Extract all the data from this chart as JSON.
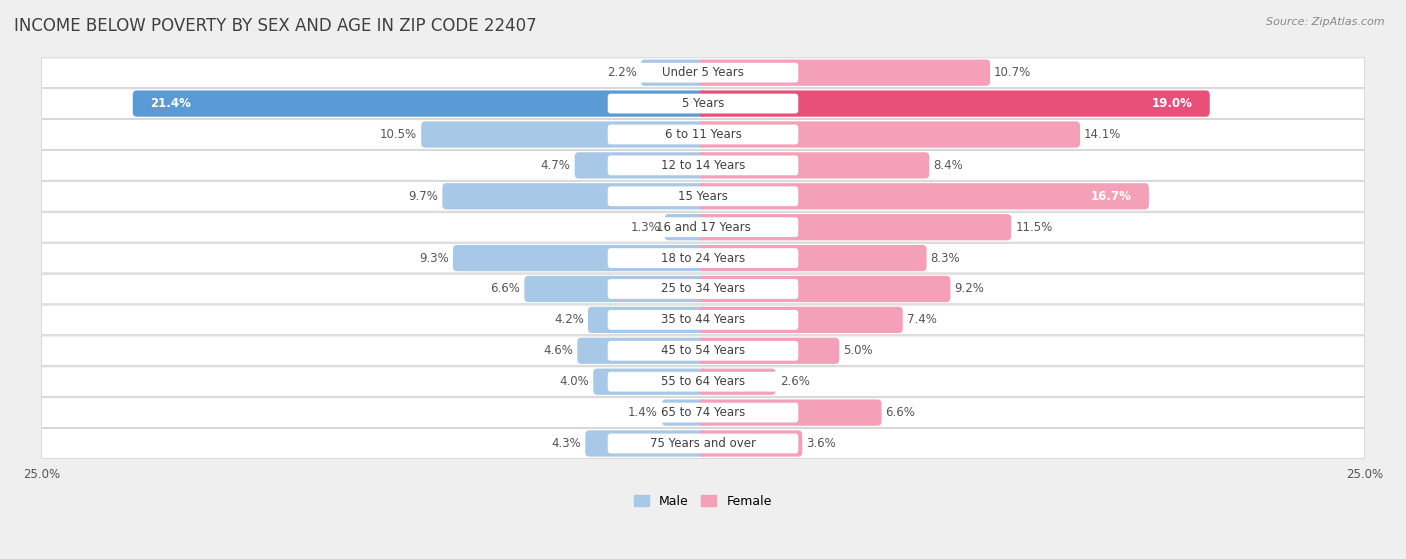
{
  "title": "INCOME BELOW POVERTY BY SEX AND AGE IN ZIP CODE 22407",
  "source": "Source: ZipAtlas.com",
  "categories": [
    "Under 5 Years",
    "5 Years",
    "6 to 11 Years",
    "12 to 14 Years",
    "15 Years",
    "16 and 17 Years",
    "18 to 24 Years",
    "25 to 34 Years",
    "35 to 44 Years",
    "45 to 54 Years",
    "55 to 64 Years",
    "65 to 74 Years",
    "75 Years and over"
  ],
  "male_values": [
    2.2,
    21.4,
    10.5,
    4.7,
    9.7,
    1.3,
    9.3,
    6.6,
    4.2,
    4.6,
    4.0,
    1.4,
    4.3
  ],
  "female_values": [
    10.7,
    19.0,
    14.1,
    8.4,
    16.7,
    11.5,
    8.3,
    9.2,
    7.4,
    5.0,
    2.6,
    6.6,
    3.6
  ],
  "male_color": "#a8c8e8",
  "female_color": "#f4a0b8",
  "male_highlight_color": "#5b9bd5",
  "female_highlight_color": "#e8507a",
  "background_color": "#efefef",
  "row_bg_color": "#ffffff",
  "row_alt_color": "#f5f5f5",
  "xlim": 25.0,
  "legend_male": "Male",
  "legend_female": "Female",
  "title_fontsize": 12,
  "label_fontsize": 8.5,
  "category_fontsize": 8.5,
  "source_fontsize": 8
}
